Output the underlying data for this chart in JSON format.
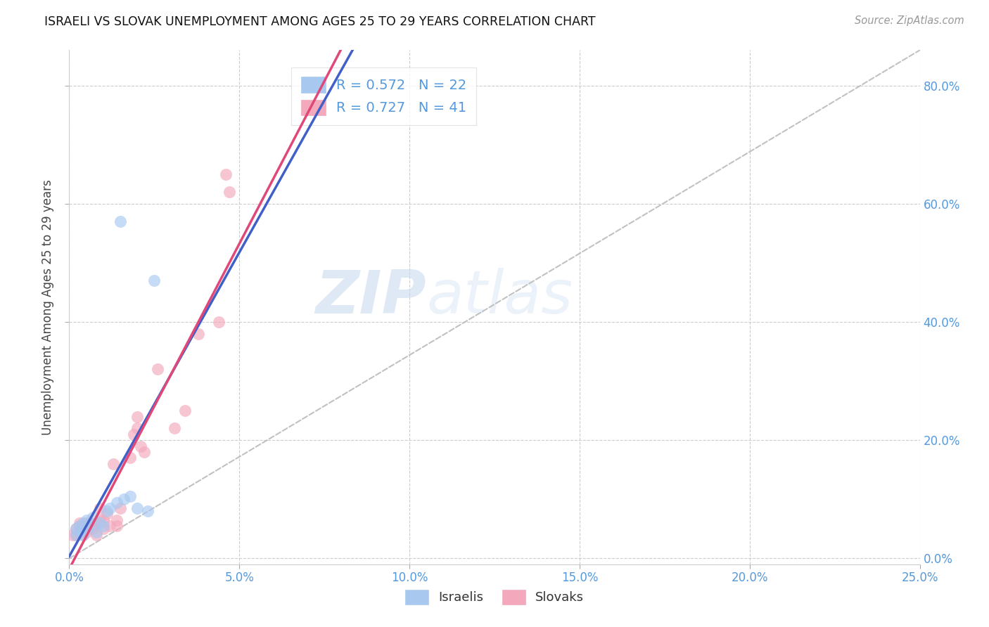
{
  "title": "ISRAELI VS SLOVAK UNEMPLOYMENT AMONG AGES 25 TO 29 YEARS CORRELATION CHART",
  "source": "Source: ZipAtlas.com",
  "xlabel_ticks": [
    "0.0%",
    "5.0%",
    "10.0%",
    "15.0%",
    "20.0%",
    "25.0%"
  ],
  "ylabel_ticks": [
    "0.0%",
    "20.0%",
    "40.0%",
    "60.0%",
    "80.0%"
  ],
  "ylabel_label": "Unemployment Among Ages 25 to 29 years",
  "xmin": 0.0,
  "xmax": 0.25,
  "ymin": -0.01,
  "ymax": 0.86,
  "israeli_color": "#a8c8f0",
  "slovak_color": "#f4a8bc",
  "israeli_line_color": "#4060c8",
  "slovak_line_color": "#e04878",
  "diagonal_color": "#bbbbbb",
  "legend_r_israeli": "R = 0.572",
  "legend_n_israeli": "N = 22",
  "legend_r_slovak": "R = 0.727",
  "legend_n_slovak": "N = 41",
  "legend_label_israeli": "Israelis",
  "legend_label_slovak": "Slovaks",
  "israeli_x": [
    0.002,
    0.002,
    0.003,
    0.003,
    0.004,
    0.004,
    0.005,
    0.005,
    0.006,
    0.007,
    0.008,
    0.009,
    0.01,
    0.011,
    0.012,
    0.014,
    0.016,
    0.018,
    0.02,
    0.023,
    0.015,
    0.025
  ],
  "israeli_y": [
    0.04,
    0.05,
    0.045,
    0.055,
    0.04,
    0.06,
    0.05,
    0.065,
    0.055,
    0.07,
    0.045,
    0.06,
    0.055,
    0.08,
    0.085,
    0.095,
    0.1,
    0.105,
    0.085,
    0.08,
    0.57,
    0.47
  ],
  "slovak_x": [
    0.001,
    0.002,
    0.002,
    0.003,
    0.003,
    0.003,
    0.004,
    0.004,
    0.004,
    0.005,
    0.005,
    0.005,
    0.006,
    0.006,
    0.007,
    0.007,
    0.008,
    0.008,
    0.009,
    0.009,
    0.01,
    0.01,
    0.011,
    0.012,
    0.013,
    0.014,
    0.014,
    0.015,
    0.018,
    0.019,
    0.02,
    0.02,
    0.021,
    0.022,
    0.026,
    0.031,
    0.034,
    0.038,
    0.044,
    0.046,
    0.047
  ],
  "slovak_y": [
    0.04,
    0.04,
    0.05,
    0.045,
    0.055,
    0.06,
    0.04,
    0.05,
    0.055,
    0.045,
    0.055,
    0.06,
    0.05,
    0.06,
    0.05,
    0.055,
    0.04,
    0.06,
    0.065,
    0.085,
    0.05,
    0.065,
    0.075,
    0.055,
    0.16,
    0.055,
    0.065,
    0.085,
    0.17,
    0.21,
    0.24,
    0.22,
    0.19,
    0.18,
    0.32,
    0.22,
    0.25,
    0.38,
    0.4,
    0.65,
    0.62
  ],
  "watermark_zip": "ZIP",
  "watermark_atlas": "atlas",
  "background_color": "#ffffff",
  "grid_color": "#cccccc"
}
